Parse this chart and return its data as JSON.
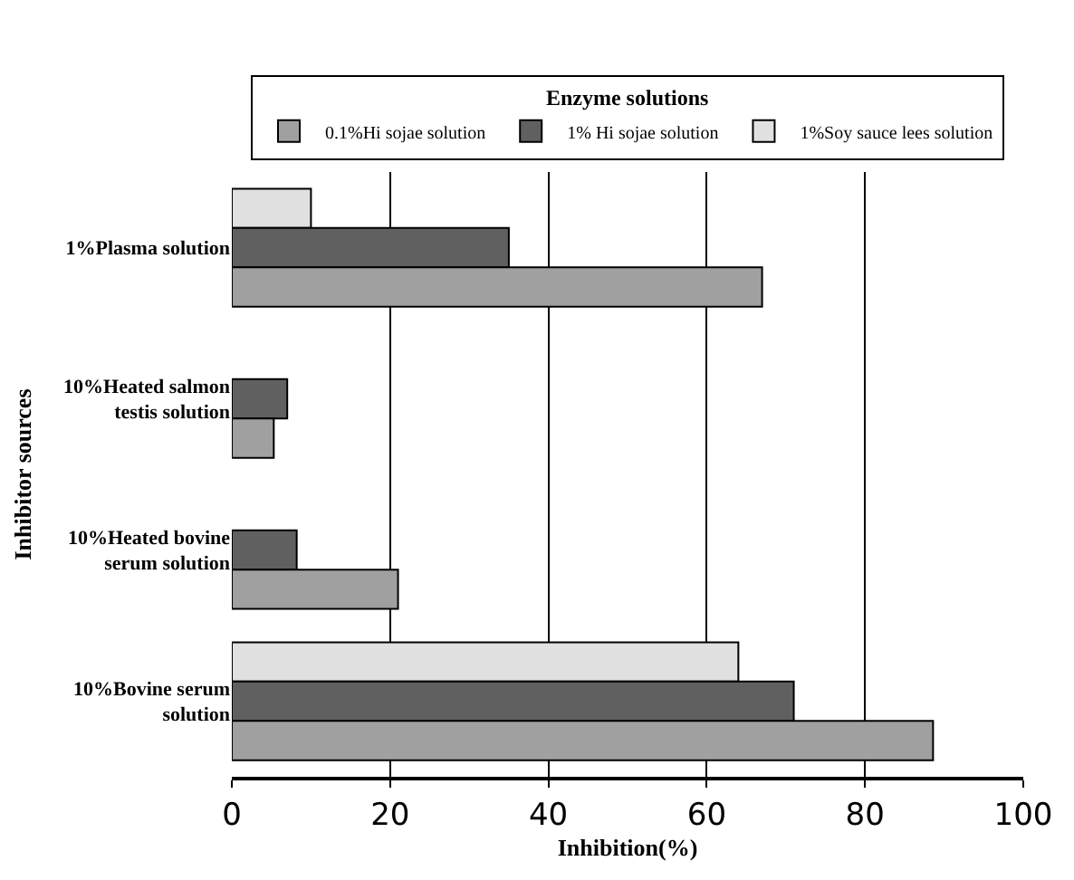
{
  "chart_data": {
    "type": "bar",
    "orientation": "horizontal",
    "categories": [
      "1%Plasma solution",
      "10%Heated salmon testis solution",
      "10%Heated bovine serum solution",
      "10%Bovine serum solution"
    ],
    "series": [
      {
        "name": "0.1%Hi sojae solution",
        "color": "#a0a0a0",
        "values": [
          67,
          5.3,
          21,
          88.6
        ]
      },
      {
        "name": "1% Hi sojae solution",
        "color": "#606060",
        "values": [
          35,
          7,
          8.2,
          71
        ]
      },
      {
        "name": "1%Soy sauce lees solution",
        "color": "#e0e0e0",
        "values": [
          10,
          null,
          null,
          64
        ]
      }
    ],
    "legend_title": "Enzyme solutions",
    "legend": "top",
    "xlabel": "Inhibition(%)",
    "ylabel": "Inhibitor sources",
    "xlim": [
      0,
      100
    ],
    "xticks": [
      0,
      20,
      40,
      60,
      80,
      100
    ],
    "grid": "x"
  }
}
